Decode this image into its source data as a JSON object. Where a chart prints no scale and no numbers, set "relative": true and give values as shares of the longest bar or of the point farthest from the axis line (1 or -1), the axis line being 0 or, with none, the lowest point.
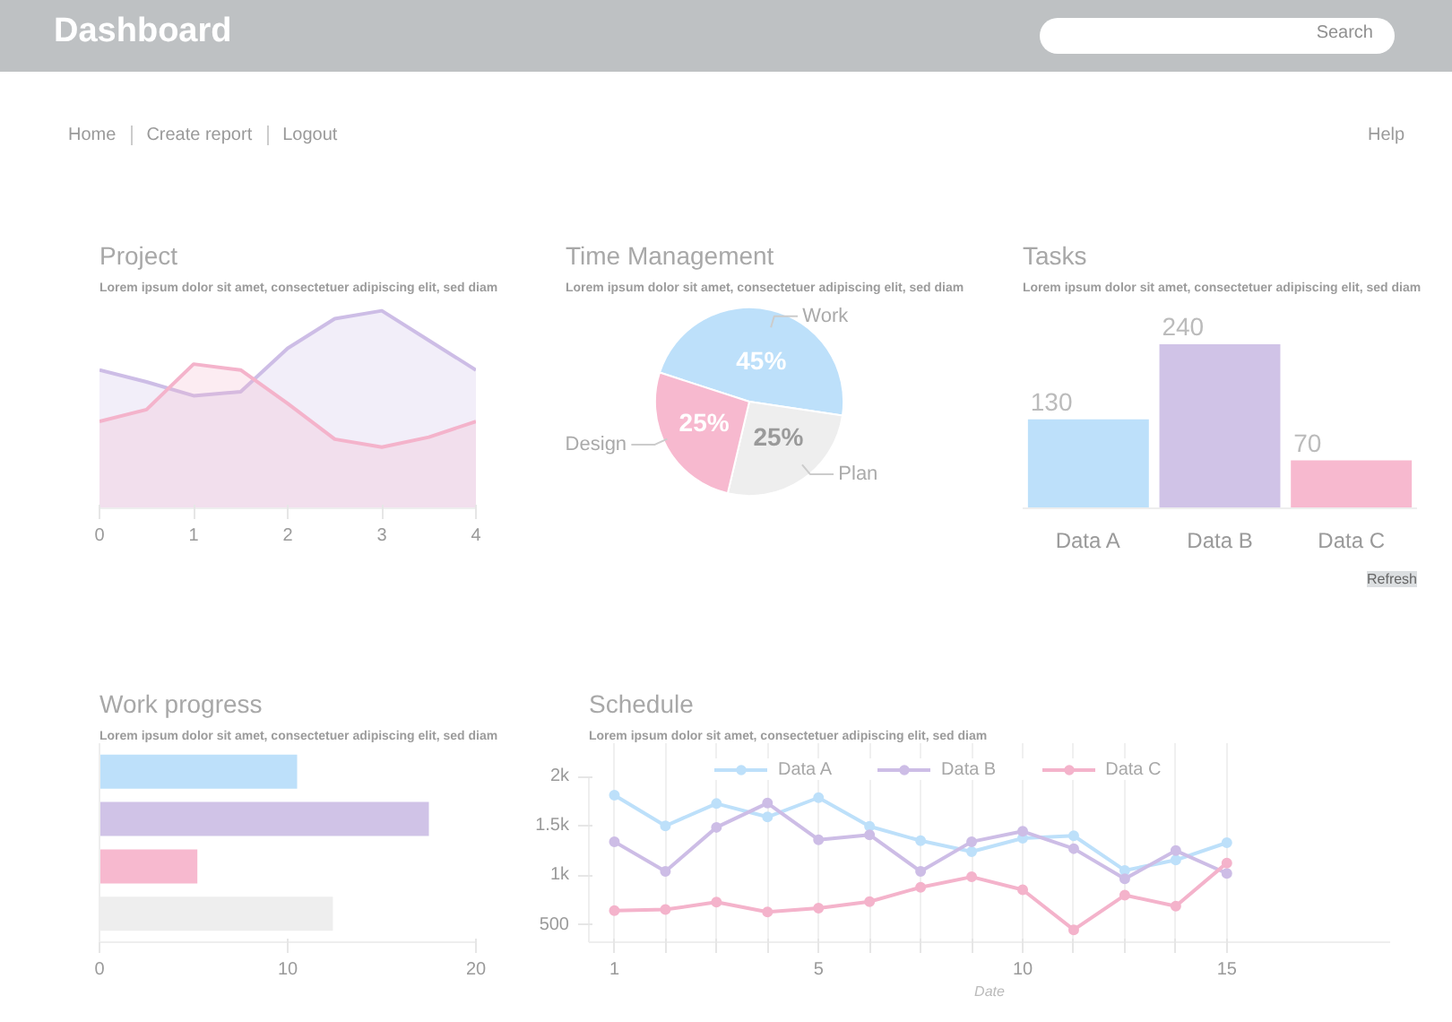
{
  "chart_data": [
    {
      "type": "other",
      "title": "Dashboard",
      "annotations": [
        "Search",
        "Home",
        "Create report",
        "Logout",
        "Help"
      ]
    },
    {
      "type": "area",
      "title": "Project",
      "subtitle": "Lorem ipsum dolor sit amet, consectetuer adipiscing elit, sed diam",
      "relative": true,
      "xlim": [
        0,
        4
      ],
      "xticks": [
        0,
        1,
        2,
        3,
        4
      ],
      "x": [
        0,
        0.5,
        1,
        1.5,
        2,
        2.5,
        3,
        3.5,
        4
      ],
      "series": [
        {
          "color": "#cdbde6",
          "values": [
            0.7,
            0.64,
            0.57,
            0.59,
            0.81,
            0.96,
            1.0,
            0.85,
            0.7
          ]
        },
        {
          "color": "#f4b3cb",
          "values": [
            0.44,
            0.5,
            0.73,
            0.7,
            0.53,
            0.35,
            0.31,
            0.36,
            0.44
          ]
        }
      ]
    },
    {
      "type": "pie",
      "title": "Time Management",
      "subtitle": "Lorem ipsum dolor sit amet, consectetuer adipiscing elit, sed diam",
      "categories": [
        "Work",
        "Plan",
        "Design"
      ],
      "values": [
        45,
        25,
        25
      ],
      "colors": [
        "#bde0fa",
        "#eeeeee",
        "#f7b9cf"
      ],
      "value_labels": [
        "45%",
        "25%",
        "25%"
      ]
    },
    {
      "type": "bar",
      "title": "Tasks",
      "subtitle": "Lorem ipsum dolor sit amet, consectetuer adipiscing elit, sed diam",
      "categories": [
        "Data A",
        "Data B",
        "Data C"
      ],
      "values": [
        130,
        240,
        70
      ],
      "colors": [
        "#bde0fa",
        "#d0c3e7",
        "#f7b9cf"
      ],
      "data_labels": true,
      "annotations": [
        "Refresh"
      ]
    },
    {
      "type": "bar",
      "title": "Work progress",
      "subtitle": "Lorem ipsum dolor sit amet, consectetuer adipiscing elit, sed diam",
      "orientation": "horizontal",
      "categories": [
        null,
        null,
        null,
        null
      ],
      "values": [
        10.5,
        17.5,
        5.2,
        12.4
      ],
      "colors": [
        "#bde0fa",
        "#d0c3e7",
        "#f7b9cf",
        "#eeeeee"
      ],
      "xlim": [
        0,
        20
      ],
      "xticks": [
        0,
        10,
        20
      ]
    },
    {
      "type": "line",
      "title": "Schedule",
      "subtitle": "Lorem ipsum dolor sit amet, consectetuer adipiscing elit, sed diam",
      "xlabel": "Date",
      "categories": [
        "1",
        null,
        null,
        null,
        "5",
        null,
        null,
        null,
        "10",
        null,
        null,
        null,
        "15"
      ],
      "ylim": [
        325,
        2000
      ],
      "yticks": [
        {
          "value": 500,
          "label": "500"
        },
        {
          "value": 1000,
          "label": "1k"
        },
        {
          "value": 1500,
          "label": "1.5k"
        },
        {
          "value": 2000,
          "label": "2k"
        }
      ],
      "grid": "x",
      "legend": "top",
      "marker": "circle",
      "series": [
        {
          "name": "Data A",
          "color": "#bde0fa",
          "values": [
            1810,
            1500,
            1725,
            1590,
            1785,
            1495,
            1350,
            1240,
            1375,
            1400,
            1050,
            1155,
            1330
          ]
        },
        {
          "name": "Data B",
          "color": "#cdbde6",
          "values": [
            1340,
            1040,
            1485,
            1730,
            1360,
            1410,
            1040,
            1340,
            1445,
            1270,
            965,
            1250,
            1020
          ]
        },
        {
          "name": "Data C",
          "color": "#f4b3cb",
          "values": [
            645,
            655,
            730,
            630,
            670,
            735,
            880,
            985,
            855,
            450,
            800,
            690,
            1125
          ]
        }
      ]
    }
  ]
}
